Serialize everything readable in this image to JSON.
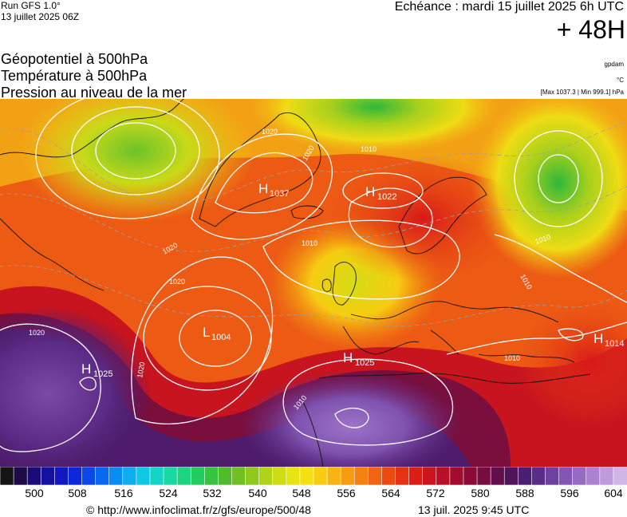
{
  "header": {
    "run": "Run GFS 1.0°",
    "run_date": "13 juillet 2025 06Z",
    "echeance": "Echéance : mardi 15 juillet 2025 6h UTC",
    "lead": "+ 48H"
  },
  "fields": [
    "Géopotentiel à 500hPa",
    "Température à 500hPa",
    "Pression au niveau de la mer"
  ],
  "units": {
    "geopotential": "gpdam",
    "temperature": "°C",
    "pressure": "[Max 1037.3 | Min 999.1] hPa"
  },
  "map": {
    "centers": [
      {
        "type": "H",
        "value": "1037"
      },
      {
        "type": "H",
        "value": "1022"
      },
      {
        "type": "L",
        "value": "1004"
      },
      {
        "type": "H",
        "value": "1025"
      },
      {
        "type": "H",
        "value": "1025"
      },
      {
        "type": "H",
        "value": "1014"
      }
    ],
    "isobar_labels": [
      "1020",
      "1020",
      "1010",
      "1010",
      "1020",
      "1020",
      "1010",
      "1010",
      "1020",
      "1020",
      "1010",
      "1010"
    ]
  },
  "scale": {
    "colors": [
      "#141414",
      "#1e0a46",
      "#1a0c78",
      "#1410a0",
      "#1018c0",
      "#0c28d8",
      "#0a48e8",
      "#0868f0",
      "#0a8cf2",
      "#0caef0",
      "#10c8e4",
      "#14d4c8",
      "#18d8a4",
      "#1cd482",
      "#22cc60",
      "#34c440",
      "#50bc2c",
      "#70c024",
      "#90c81c",
      "#b0d218",
      "#cedc14",
      "#e6e412",
      "#f6e012",
      "#f8cc12",
      "#f8b412",
      "#f89a12",
      "#f68012",
      "#f26412",
      "#ec4a12",
      "#e63214",
      "#dc1e18",
      "#cc141e",
      "#b81026",
      "#a20c2e",
      "#8c0a36",
      "#760c40",
      "#620e4c",
      "#521458",
      "#4a1e70",
      "#5a2c88",
      "#6e40a0",
      "#8256b2",
      "#966cc2",
      "#aa84d0",
      "#be9cdc",
      "#d0b6e6"
    ],
    "labels": [
      "500",
      "508",
      "516",
      "524",
      "532",
      "540",
      "548",
      "556",
      "564",
      "572",
      "580",
      "588",
      "596",
      "604"
    ]
  },
  "footer": {
    "url": "© http://www.infoclimat.fr/z/gfs/europe/500/48",
    "date": "13 juil. 2025  9:45 UTC"
  }
}
